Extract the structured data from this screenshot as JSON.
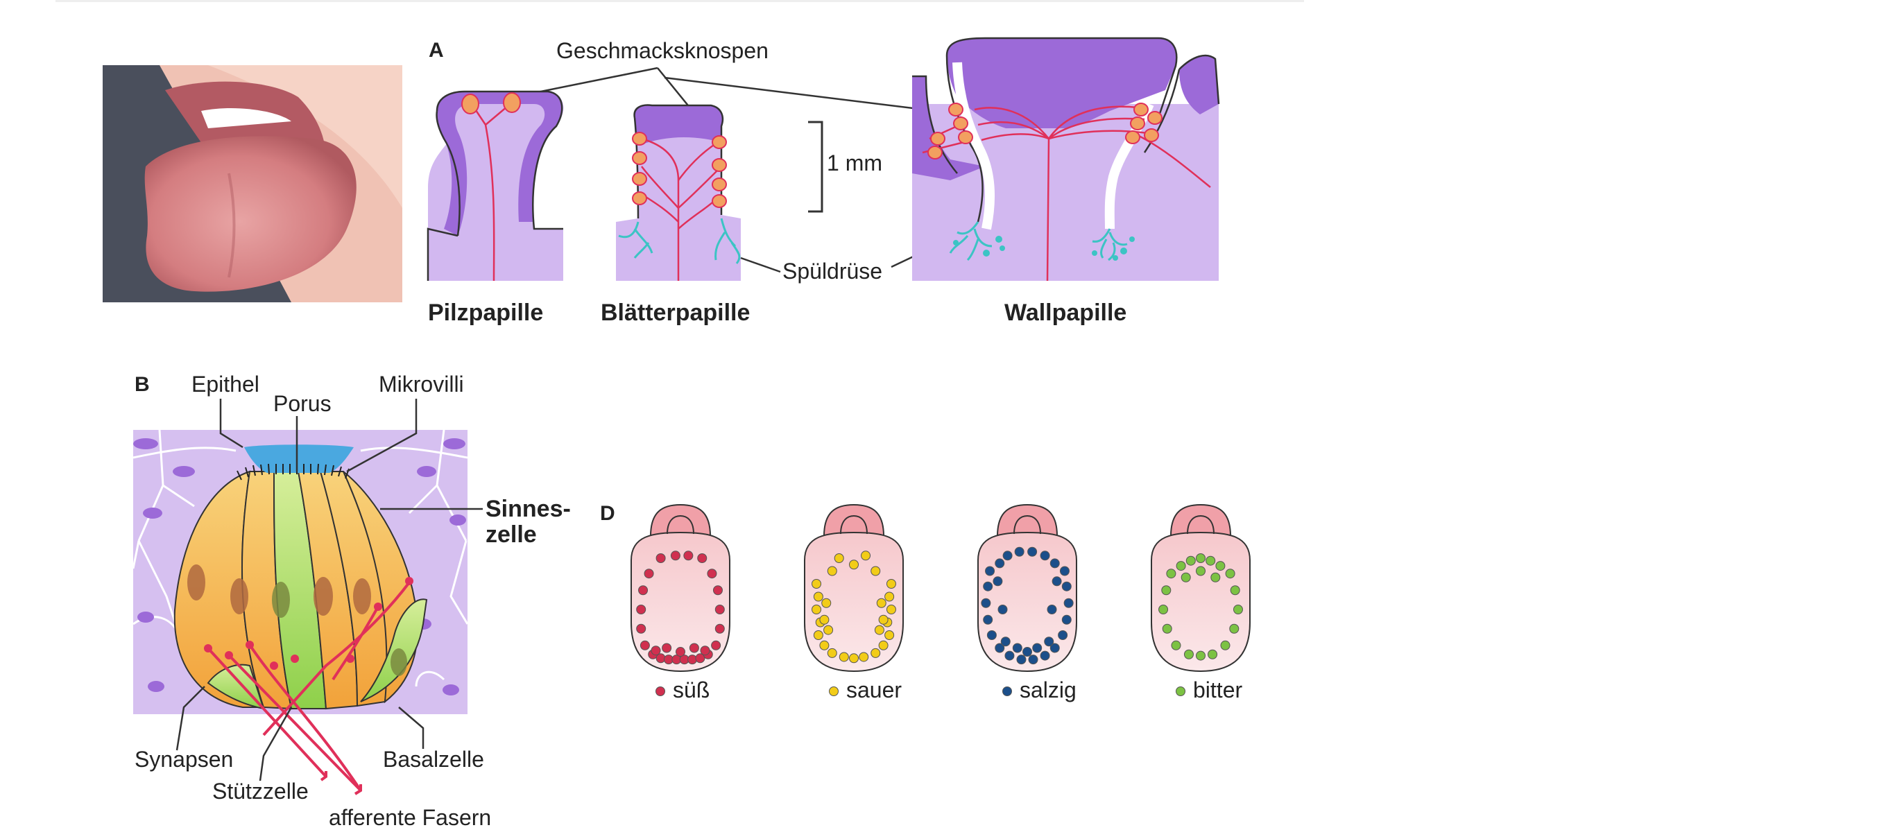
{
  "figure": {
    "panel_a": {
      "letter": "A",
      "geschmacksknospen": "Geschmacksknospen",
      "scale": "1 mm",
      "spueldruese": "Spüldrüse",
      "pilzpapille": "Pilzpapille",
      "blaetterpapille": "Blätterpapille",
      "wallpapille": "Wallpapille"
    },
    "panel_b": {
      "letter": "B",
      "epithel": "Epithel",
      "porus": "Porus",
      "mikrovilli": "Mikrovilli",
      "sinneszelle_1": "Sinnes-",
      "sinneszelle_2": "zelle",
      "synapsen": "Synapsen",
      "stuetzzelle": "Stützzelle",
      "basalzelle": "Basalzelle",
      "afferente_fasern": "afferente Fasern"
    },
    "panel_d": {
      "letter": "D",
      "tastes": [
        {
          "label": "süß",
          "color": "#d0304f"
        },
        {
          "label": "sauer",
          "color": "#f2cc18"
        },
        {
          "label": "salzig",
          "color": "#1c4f8a"
        },
        {
          "label": "bitter",
          "color": "#7cc243"
        }
      ]
    }
  },
  "colors": {
    "papilla_dark": "#9c6ad8",
    "papilla_light": "#d2b8f0",
    "nerve": "#e0305a",
    "bud": "#f2a060",
    "gland": "#3cc4c4",
    "pore": "#4aa8e0",
    "tongue_fill": "#f8d4d4",
    "tongue_tip": "#f0a0a8"
  }
}
